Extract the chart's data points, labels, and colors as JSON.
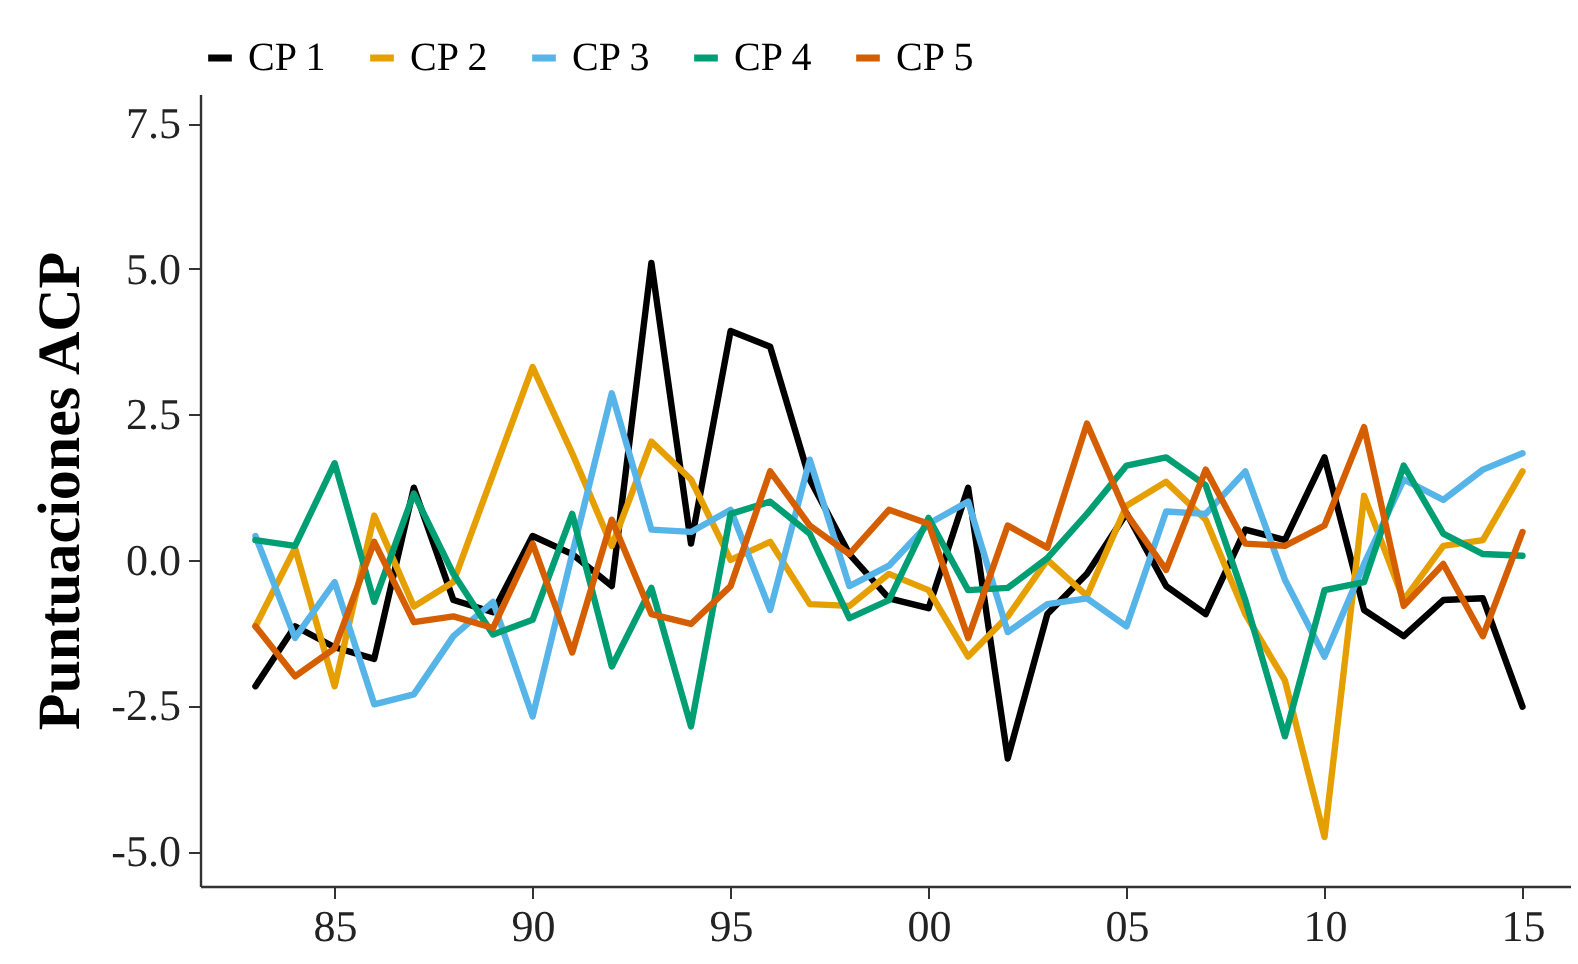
{
  "chart_data": {
    "type": "line",
    "ylabel": "Puntuaciones ACP",
    "x": [
      1983,
      1984,
      1985,
      1986,
      1987,
      1988,
      1989,
      1990,
      1991,
      1992,
      1993,
      1994,
      1995,
      1996,
      1997,
      1998,
      1999,
      2000,
      2001,
      2002,
      2003,
      2004,
      2005,
      2006,
      2007,
      2008,
      2009,
      2010,
      2011,
      2012,
      2013,
      2014,
      2015
    ],
    "series": [
      {
        "name": "CP 1",
        "color": "#000000",
        "values": [
          -2.17,
          -1.14,
          -1.5,
          -1.7,
          1.24,
          -0.69,
          -0.9,
          0.41,
          0.1,
          -0.45,
          5.1,
          0.28,
          3.93,
          3.66,
          1.38,
          0.1,
          -0.66,
          -0.83,
          1.24,
          -3.41,
          -0.93,
          -0.24,
          0.8,
          -0.45,
          -0.93,
          0.52,
          0.34,
          1.76,
          -0.86,
          -1.31,
          -0.69,
          -0.66,
          -2.52
        ]
      },
      {
        "name": "CP 2",
        "color": "#e69f00",
        "values": [
          -1.14,
          0.2,
          -2.17,
          0.76,
          -0.8,
          -0.38,
          1.47,
          3.31,
          1.83,
          0.24,
          2.03,
          1.38,
          0,
          0.31,
          -0.76,
          -0.79,
          -0.24,
          -0.52,
          -1.66,
          -0.97,
          0,
          -0.62,
          0.93,
          1.34,
          0.69,
          -0.93,
          -2.07,
          -4.76,
          1.1,
          -0.69,
          0.24,
          0.34,
          1.52
        ]
      },
      {
        "name": "CP 3",
        "color": "#56b4e9",
        "values": [
          0.41,
          -1.34,
          -0.38,
          -2.48,
          -2.31,
          -1.31,
          -0.72,
          -2.69,
          0.1,
          2.86,
          0.52,
          0.48,
          0.86,
          -0.86,
          1.72,
          -0.45,
          -0.1,
          0.62,
          1.0,
          -1.24,
          -0.76,
          -0.66,
          -1.14,
          0.83,
          0.79,
          1.52,
          -0.34,
          -1.66,
          -0.07,
          1.38,
          1.03,
          1.55,
          1.83
        ]
      },
      {
        "name": "CP 4",
        "color": "#009e73",
        "values": [
          0.34,
          0.24,
          1.66,
          -0.72,
          1.14,
          -0.24,
          -1.28,
          -1.03,
          0.79,
          -1.83,
          -0.48,
          -2.86,
          0.79,
          1.0,
          0.45,
          -1.0,
          -0.69,
          0.72,
          -0.52,
          -0.48,
          0.03,
          0.79,
          1.62,
          1.76,
          1.28,
          -0.69,
          -3.03,
          -0.52,
          -0.38,
          1.62,
          0.45,
          0.1,
          0.07
        ]
      },
      {
        "name": "CP 5",
        "color": "#d55e00",
        "values": [
          -1.14,
          -2.0,
          -1.52,
          0.31,
          -1.07,
          -0.97,
          -1.17,
          0.28,
          -1.59,
          0.69,
          -0.93,
          -1.1,
          -0.45,
          1.52,
          0.59,
          0.1,
          0.86,
          0.62,
          -1.34,
          0.59,
          0.21,
          2.34,
          0.79,
          -0.17,
          1.55,
          0.28,
          0.24,
          0.59,
          2.28,
          -0.79,
          -0.07,
          -1.31,
          0.48
        ]
      }
    ],
    "xlim": [
      1981.6,
      2016.2
    ],
    "xticks": [
      {
        "value": 1985,
        "label": "85"
      },
      {
        "value": 1990,
        "label": "90"
      },
      {
        "value": 1995,
        "label": "95"
      },
      {
        "value": 2000,
        "label": "00"
      },
      {
        "value": 2005,
        "label": "05"
      },
      {
        "value": 2010,
        "label": "10"
      },
      {
        "value": 2015,
        "label": "15"
      }
    ],
    "ylim": [
      -5.6,
      8
    ],
    "yticks": [
      {
        "value": -5,
        "label": "-5.0"
      },
      {
        "value": -2.5,
        "label": "-2.5"
      },
      {
        "value": 0,
        "label": "0.0"
      },
      {
        "value": 2.5,
        "label": "2.5"
      },
      {
        "value": 5,
        "label": "5.0"
      },
      {
        "value": 7.5,
        "label": "7.5"
      }
    ],
    "legend": "top",
    "grid": false,
    "marker": "none",
    "line_style": "solid"
  }
}
